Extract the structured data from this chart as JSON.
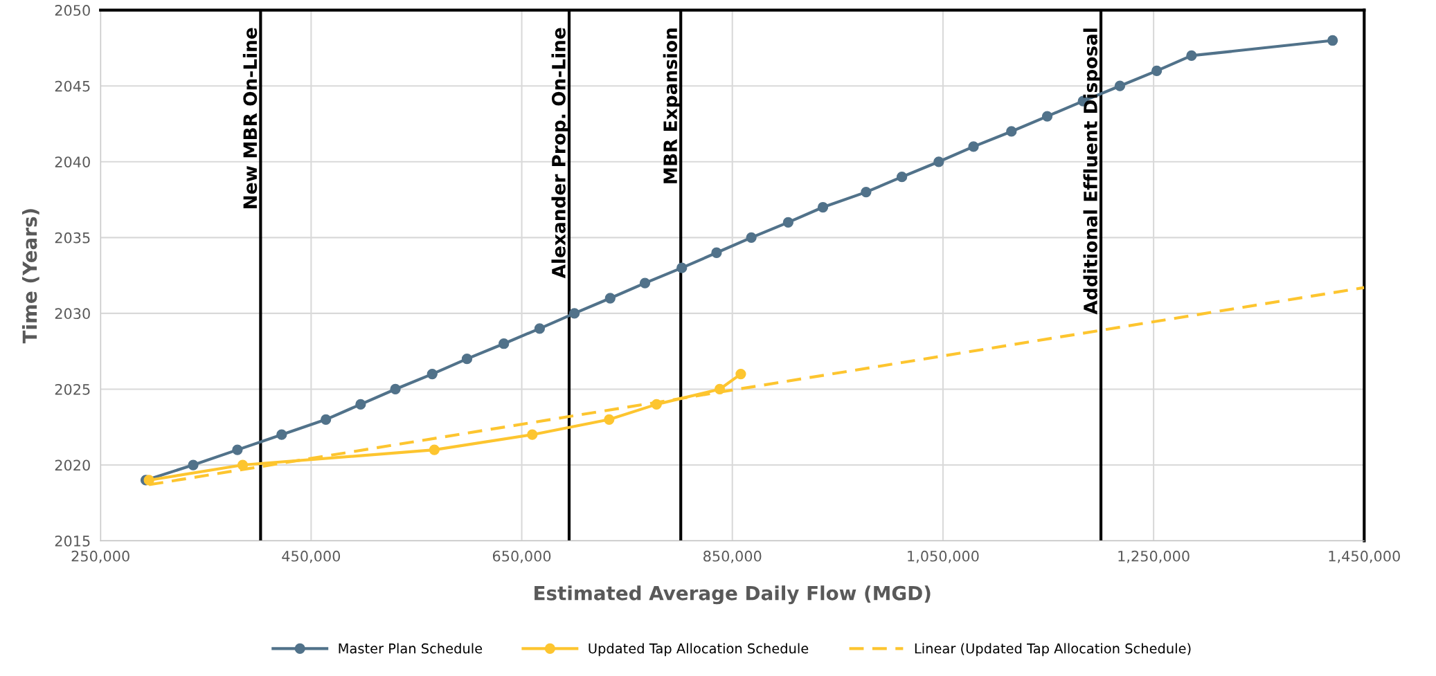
{
  "chart_data": {
    "type": "line",
    "xlabel": "Estimated Average Daily Flow (MGD)",
    "ylabel": "Time (Years)",
    "xlim": [
      250000,
      1450000
    ],
    "xticks": [
      {
        "value": 250000,
        "label": "250,000"
      },
      {
        "value": 450000,
        "label": "450,000"
      },
      {
        "value": 650000,
        "label": "650,000"
      },
      {
        "value": 850000,
        "label": "850,000"
      },
      {
        "value": 1050000,
        "label": "1,050,000"
      },
      {
        "value": 1250000,
        "label": "1,250,000"
      },
      {
        "value": 1450000,
        "label": "1,450,000"
      }
    ],
    "ylim": [
      2015,
      2050
    ],
    "yticks": [
      2015,
      2020,
      2025,
      2030,
      2035,
      2040,
      2045,
      2050
    ],
    "grid": true,
    "legend": "bottom",
    "marker": "circle",
    "series": [
      {
        "name": "Master Plan Schedule",
        "color": "#51728a",
        "x": [
          293000,
          338000,
          380000,
          422000,
          464000,
          497000,
          530000,
          565000,
          598000,
          633000,
          667000,
          700000,
          734000,
          767000,
          802000,
          835000,
          868000,
          903000,
          936000,
          977000,
          1011000,
          1046000,
          1079000,
          1115000,
          1149000,
          1183000,
          1218000,
          1253000,
          1286000,
          1420000
        ],
        "values": [
          2019,
          2020,
          2021,
          2022,
          2023,
          2024,
          2025,
          2026,
          2027,
          2028,
          2029,
          2030,
          2031,
          2032,
          2033,
          2034,
          2035,
          2036,
          2037,
          2038,
          2039,
          2040,
          2041,
          2042,
          2043,
          2044,
          2045,
          2046,
          2047,
          2048
        ]
      },
      {
        "name": "Updated Tap Allocation Schedule",
        "color": "#fdc52f",
        "x": [
          296000,
          385000,
          567000,
          660000,
          733000,
          778000,
          838000,
          858000
        ],
        "values": [
          2019,
          2020,
          2021,
          2022,
          2023,
          2024,
          2025,
          2026
        ]
      },
      {
        "name": "Linear (Updated Tap Allocation Schedule)",
        "color": "#fdc52f",
        "marker": "none",
        "line_style": "dashed",
        "x": [
          296000,
          1450000
        ],
        "values": [
          2018.7,
          2031.7
        ]
      }
    ],
    "ref_lines": [
      {
        "axis": "x",
        "value": 402000,
        "label": "New MBR On-Line",
        "color": "#000000"
      },
      {
        "axis": "x",
        "value": 695000,
        "label": "Alexander Prop. On-Line",
        "color": "#000000"
      },
      {
        "axis": "x",
        "value": 801000,
        "label": "MBR Expansion",
        "color": "#000000"
      },
      {
        "axis": "x",
        "value": 1200000,
        "label": "Additional Effluent Disposal",
        "color": "#000000"
      }
    ]
  }
}
